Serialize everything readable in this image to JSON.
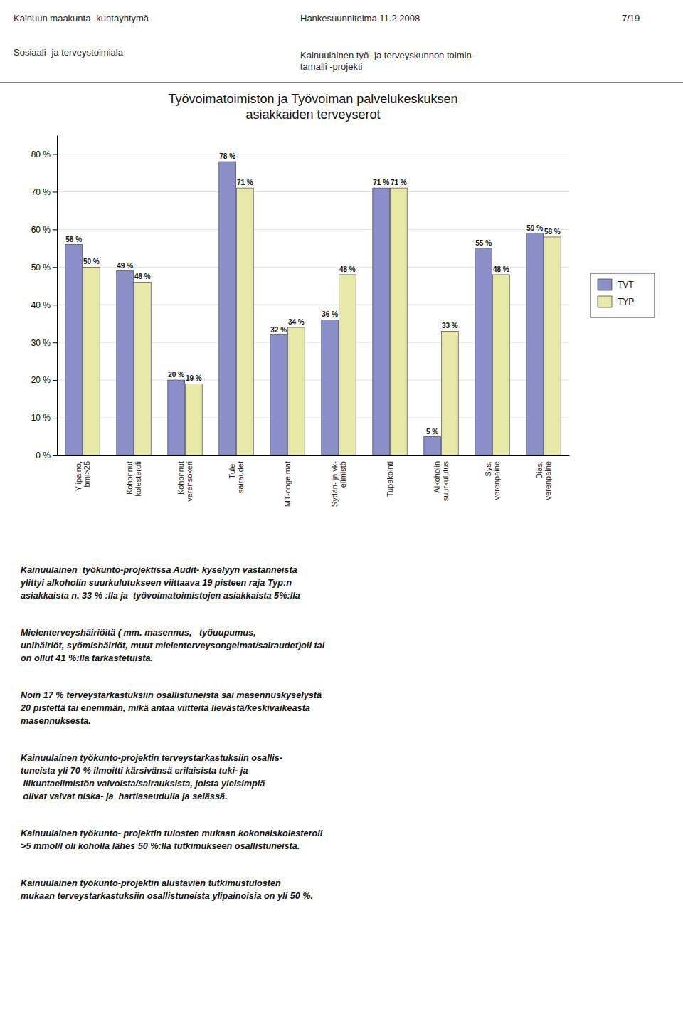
{
  "chart_data": {
    "type": "bar",
    "title": "Työvoimatoimiston ja Työvoiman palvelukeskuksen\nasiakkaiden terveyserot",
    "annotations": [
      "Kainuun maakunta -kuntayhtymä",
      "Sosiaali- ja terveystoimiala",
      "Hankesuunnitelma 11.2.2008",
      "7/19",
      "Kainuulainen työ- ja terveyskunnon toimin-\ntamalli -projekti",
      "Kainuulainen  työkunto-projektissa Audit- kyselyyn vastanneista\nylittyi alkoholin suurkulutukseen viittaava 19 pisteen raja Typ:n\nasiakkaista n. 33 % :lla ja  työvoimatoimistojen asiakkaista 5%:lla",
      "Mielenterveyshäiriöitä ( mm. masennus,   työuupumus,\nunihäiriöt, syömishäiriöt, muut mielenterveysongelmat/sairaudet)oli tai\non ollut 41 %:lla tarkastetuista.",
      "Noin 17 % terveystarkastuksiin osallistuneista sai masennuskyselystä\n20 pistettä tai enemmän, mikä antaa viitteitä lievästä/keskivaikeasta\nmasennuksesta.",
      "Kainuulainen työkunto-projektin terveystarkastuksiin osallis-\ntuneista yli 70 % ilmoitti kärsivänsä erilaisista tuki- ja\n liikuntaelimistön vaivoista/sairauksista, joista yleisimpiä\n olivat vaivat niska- ja  hartiaseudulla ja selässä.",
      "Kainuulainen työkunto- projektin tulosten mukaan kokonaiskolesteroli\n>5 mmol/l oli koholla lähes 50 %:lla tutkimukseen osallistuneista.",
      "Kainuulainen työkunto-projektin alustavien tutkimustulosten\nmukaan terveystarkastuksiin osallistuneista ylipainoisia on yli 50 %."
    ],
    "categories": [
      "Ylipaino,\nbmi>25",
      "Kohonnut\nkolesteroli",
      "Kohonnut\nverensokeri",
      "Tule-\nsairaudet",
      "MT-ongelmat",
      "Sydän- ja vk-\nelimistö",
      "Tupakointi",
      "Alkoholin\nsuurkulutus",
      "Sys.\nverenpaine",
      "Dias.\nverenpaine"
    ],
    "series": [
      {
        "name": "TVT",
        "color": "#8B8FC8",
        "values": [
          56,
          49,
          20,
          78,
          32,
          36,
          71,
          5,
          55,
          59
        ],
        "value_labels": [
          "56 %",
          "49 %",
          "20 %",
          "78 %",
          "32 %",
          "36 %",
          "71 %",
          "5 %",
          "55 %",
          "59 %"
        ]
      },
      {
        "name": "TYP",
        "color": "#E8E8A8",
        "values": [
          50,
          46,
          19,
          71,
          34,
          48,
          71,
          33,
          48,
          58
        ],
        "value_labels": [
          "50 %",
          "46 %",
          "19 %",
          "71 %",
          "34 %",
          "48 %",
          "71 %",
          "33 %",
          "48 %",
          "58 %"
        ]
      }
    ],
    "ylim": [
      0,
      85
    ],
    "yticks": [
      {
        "value": 0,
        "label": "0 %"
      },
      {
        "value": 10,
        "label": "10 %"
      },
      {
        "value": 20,
        "label": "20 %"
      },
      {
        "value": 30,
        "label": "30 %"
      },
      {
        "value": 40,
        "label": "40 %"
      },
      {
        "value": 50,
        "label": "50 %"
      },
      {
        "value": 60,
        "label": "60 %"
      },
      {
        "value": 70,
        "label": "70 %"
      },
      {
        "value": 80,
        "label": "80 %"
      }
    ],
    "grid": true,
    "legend": "right",
    "data_labels": true
  }
}
